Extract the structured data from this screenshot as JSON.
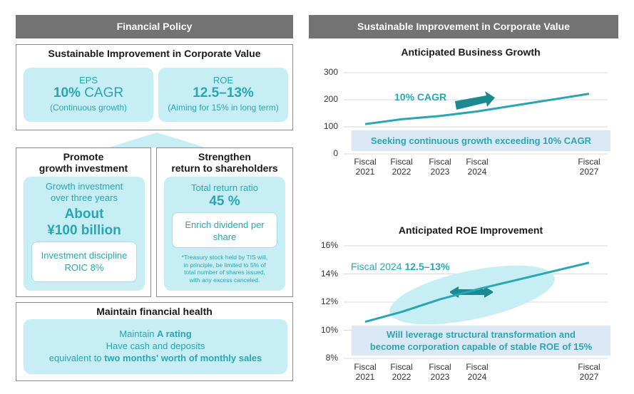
{
  "left": {
    "header": "Financial Policy",
    "top": {
      "title": "Sustainable Improvement in Corporate Value",
      "eps": {
        "label": "EPS",
        "value_bold": "10%",
        "value_rest": " CAGR",
        "note": "(Continuous growth)"
      },
      "roe": {
        "label": "ROE",
        "value": "12.5–13%",
        "note": "(Aiming for 15% in long term)"
      }
    },
    "growth": {
      "title_line1": "Promote",
      "title_line2": "growth investment",
      "desc_line1": "Growth investment",
      "desc_line2": "over three years",
      "amount_line1": "About",
      "amount_line2": "¥100 billion",
      "discipline_line1": "Investment discipline",
      "discipline_line2": "ROIC 8%"
    },
    "returns": {
      "title_line1": "Strengthen",
      "title_line2": "return to shareholders",
      "ratio_label": "Total return ratio",
      "ratio_value": "45 %",
      "dividend_line1": "Enrich dividend per",
      "dividend_line2": "share",
      "footnote_line1": "*Treasury stock held by TIS will,",
      "footnote_line2": "in principle, be limited to 5% of",
      "footnote_line3": "total number of shares issued,",
      "footnote_line4": "with any excess canceled."
    },
    "health": {
      "title": "Maintain financial health",
      "line1_pre": "Maintain ",
      "line1_bold": "A rating",
      "line2": "Have cash and deposits",
      "line3_pre": "equivalent to ",
      "line3_bold": "two months' worth of monthly sales"
    }
  },
  "right": {
    "header": "Sustainable Improvement in Corporate Value",
    "colors": {
      "teal": "#2aa6b2",
      "arrow": "#1a8a90",
      "band": "#dbe9f6",
      "ellipse": "#c6eef4"
    }
  },
  "chart_data": [
    {
      "type": "line",
      "title": "Anticipated Business Growth",
      "x_labels": [
        [
          "Fiscal",
          "2021"
        ],
        [
          "Fiscal",
          "2022"
        ],
        [
          "Fiscal",
          "2023"
        ],
        [
          "Fiscal",
          "2024"
        ],
        [
          "Fiscal",
          "2027"
        ]
      ],
      "x": [
        2021,
        2022,
        2023,
        2024,
        2027
      ],
      "values": [
        110,
        128,
        140,
        157,
        222
      ],
      "ylim": [
        0,
        300
      ],
      "yticks": [
        "0",
        "100",
        "200",
        "300"
      ],
      "grid": true,
      "annotation": "10% CAGR",
      "band_text": "Seeking continuous growth exceeding 10% CAGR"
    },
    {
      "type": "line",
      "title": "Anticipated ROE Improvement",
      "x_labels": [
        [
          "Fiscal",
          "2021"
        ],
        [
          "Fiscal",
          "2022"
        ],
        [
          "Fiscal",
          "2023"
        ],
        [
          "Fiscal",
          "2024"
        ],
        [
          "Fiscal",
          "2027"
        ]
      ],
      "x": [
        2021,
        2022,
        2023,
        2024,
        2027
      ],
      "values": [
        10.6,
        11.3,
        12.2,
        12.9,
        14.8
      ],
      "ylim": [
        8,
        16
      ],
      "yticks": [
        "8%",
        "10%",
        "12%",
        "14%",
        "16%"
      ],
      "grid": true,
      "annotation_pre": "Fiscal 2024 ",
      "annotation_bold": "12.5–13%",
      "band_line1": "Will leverage structural transformation and",
      "band_line2": "become corporation capable of stable ROE of 15%"
    }
  ]
}
